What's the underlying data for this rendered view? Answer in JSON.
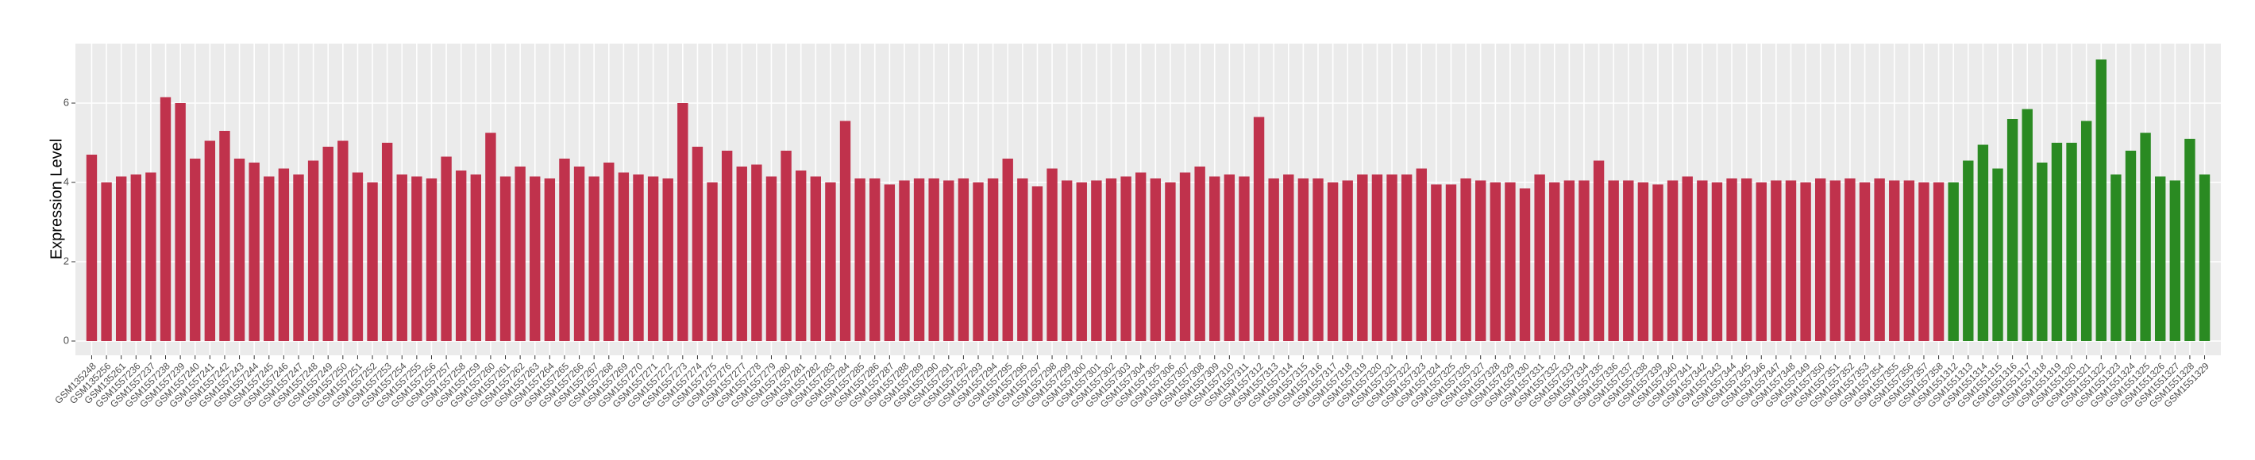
{
  "chart_data": {
    "type": "bar",
    "y_label": "Expression Level",
    "categories": [
      "GSM135248",
      "GSM135256",
      "GSM135261",
      "GSM1557236",
      "GSM1557237",
      "GSM1557238",
      "GSM1557239",
      "GSM1557240",
      "GSM1557241",
      "GSM1557242",
      "GSM1557243",
      "GSM1557244",
      "GSM1557245",
      "GSM1557246",
      "GSM1557247",
      "GSM1557248",
      "GSM1557249",
      "GSM1557250",
      "GSM1557251",
      "GSM1557252",
      "GSM1557253",
      "GSM1557254",
      "GSM1557255",
      "GSM1557256",
      "GSM1557257",
      "GSM1557258",
      "GSM1557259",
      "GSM1557260",
      "GSM1557261",
      "GSM1557262",
      "GSM1557263",
      "GSM1557264",
      "GSM1557265",
      "GSM1557266",
      "GSM1557267",
      "GSM1557268",
      "GSM1557269",
      "GSM1557270",
      "GSM1557271",
      "GSM1557272",
      "GSM1557273",
      "GSM1557274",
      "GSM1557275",
      "GSM1557276",
      "GSM1557277",
      "GSM1557278",
      "GSM1557279",
      "GSM1557280",
      "GSM1557281",
      "GSM1557282",
      "GSM1557283",
      "GSM1557284",
      "GSM1557285",
      "GSM1557286",
      "GSM1557287",
      "GSM1557288",
      "GSM1557289",
      "GSM1557290",
      "GSM1557291",
      "GSM1557292",
      "GSM1557293",
      "GSM1557294",
      "GSM1557295",
      "GSM1557296",
      "GSM1557297",
      "GSM1557298",
      "GSM1557299",
      "GSM1557300",
      "GSM1557301",
      "GSM1557302",
      "GSM1557303",
      "GSM1557304",
      "GSM1557305",
      "GSM1557306",
      "GSM1557307",
      "GSM1557308",
      "GSM1557309",
      "GSM1557310",
      "GSM1557311",
      "GSM1557312",
      "GSM1557313",
      "GSM1557314",
      "GSM1557315",
      "GSM1557316",
      "GSM1557317",
      "GSM1557318",
      "GSM1557319",
      "GSM1557320",
      "GSM1557321",
      "GSM1557322",
      "GSM1557323",
      "GSM1557324",
      "GSM1557325",
      "GSM1557326",
      "GSM1557327",
      "GSM1557328",
      "GSM1557329",
      "GSM1557330",
      "GSM1557331",
      "GSM1557332",
      "GSM1557333",
      "GSM1557334",
      "GSM1557335",
      "GSM1557336",
      "GSM1557337",
      "GSM1557338",
      "GSM1557339",
      "GSM1557340",
      "GSM1557341",
      "GSM1557342",
      "GSM1557343",
      "GSM1557344",
      "GSM1557345",
      "GSM1557346",
      "GSM1557347",
      "GSM1557348",
      "GSM1557349",
      "GSM1557350",
      "GSM1557351",
      "GSM1557352",
      "GSM1557353",
      "GSM1557354",
      "GSM1557355",
      "GSM1557356",
      "GSM1557357",
      "GSM1557358",
      "GSM1551312",
      "GSM1551313",
      "GSM1551314",
      "GSM1551315",
      "GSM1551316",
      "GSM1551317",
      "GSM1551318",
      "GSM1551319",
      "GSM1551320",
      "GSM1551321",
      "GSM1551322",
      "GSM1551323",
      "GSM1551324",
      "GSM1551325",
      "GSM1551326",
      "GSM1551327",
      "GSM1551328",
      "GSM1551329"
    ],
    "series": [
      {
        "color": "#c0324c",
        "values": [
          4.7,
          4.0,
          4.15,
          4.2,
          4.25,
          6.15,
          6.0,
          4.6,
          5.05,
          5.3,
          4.6,
          4.5,
          4.15,
          4.35,
          4.2,
          4.55,
          4.9,
          5.05,
          4.25,
          4.0,
          5.0,
          4.2,
          4.15,
          4.1,
          4.65,
          4.3,
          4.2,
          5.25,
          4.15,
          4.4,
          4.15,
          4.1,
          4.6,
          4.4,
          4.15,
          4.5,
          4.25,
          4.2,
          4.15,
          4.1,
          6.0,
          4.9,
          4.0,
          4.8,
          4.4,
          4.45,
          4.15,
          4.8,
          4.3,
          4.15,
          4.0,
          5.55,
          4.1,
          4.1,
          3.95,
          4.05,
          4.1,
          4.1,
          4.05,
          4.1,
          4.0,
          4.1,
          4.6,
          4.1,
          3.9,
          4.35,
          4.05,
          4.0,
          4.05,
          4.1,
          4.15,
          4.25,
          4.1,
          4.0,
          4.25,
          4.4,
          4.15,
          4.2,
          4.15,
          5.65,
          4.1,
          4.2,
          4.1,
          4.1,
          4.0,
          4.05,
          4.2,
          4.2,
          4.2,
          4.2,
          4.35,
          3.95,
          3.95,
          4.1,
          4.05,
          4.0,
          4.0,
          3.85,
          4.2,
          4.0,
          4.05,
          4.05,
          4.55,
          4.05,
          4.05,
          4.0,
          3.95,
          4.05,
          4.15,
          4.05,
          4.0,
          4.1,
          4.1,
          4.0,
          4.05,
          4.05,
          4.0,
          4.1,
          4.05,
          4.1,
          4.0,
          4.1,
          4.05,
          4.05,
          4.0,
          4.0,
          null,
          null,
          null,
          null,
          null,
          null,
          null,
          null,
          null,
          null,
          null,
          null,
          null,
          null,
          null,
          null,
          null,
          null
        ]
      },
      {
        "color": "#2a8a22",
        "values": [
          null,
          null,
          null,
          null,
          null,
          null,
          null,
          null,
          null,
          null,
          null,
          null,
          null,
          null,
          null,
          null,
          null,
          null,
          null,
          null,
          null,
          null,
          null,
          null,
          null,
          null,
          null,
          null,
          null,
          null,
          null,
          null,
          null,
          null,
          null,
          null,
          null,
          null,
          null,
          null,
          null,
          null,
          null,
          null,
          null,
          null,
          null,
          null,
          null,
          null,
          null,
          null,
          null,
          null,
          null,
          null,
          null,
          null,
          null,
          null,
          null,
          null,
          null,
          null,
          null,
          null,
          null,
          null,
          null,
          null,
          null,
          null,
          null,
          null,
          null,
          null,
          null,
          null,
          null,
          null,
          null,
          null,
          null,
          null,
          null,
          null,
          null,
          null,
          null,
          null,
          null,
          null,
          null,
          null,
          null,
          null,
          null,
          null,
          null,
          null,
          null,
          null,
          null,
          null,
          null,
          null,
          null,
          null,
          null,
          null,
          null,
          null,
          null,
          null,
          null,
          null,
          null,
          null,
          null,
          null,
          null,
          null,
          null,
          null,
          null,
          null,
          4.0,
          4.55,
          4.95,
          4.35,
          5.6,
          5.85,
          4.5,
          5.0,
          5.0,
          5.55,
          7.1,
          4.2,
          4.8,
          5.25,
          4.15,
          4.05,
          5.1,
          4.2
        ]
      }
    ],
    "ylim": [
      -0.36,
      7.5
    ],
    "yticks": [
      0,
      2,
      4,
      6
    ],
    "grid": true
  }
}
